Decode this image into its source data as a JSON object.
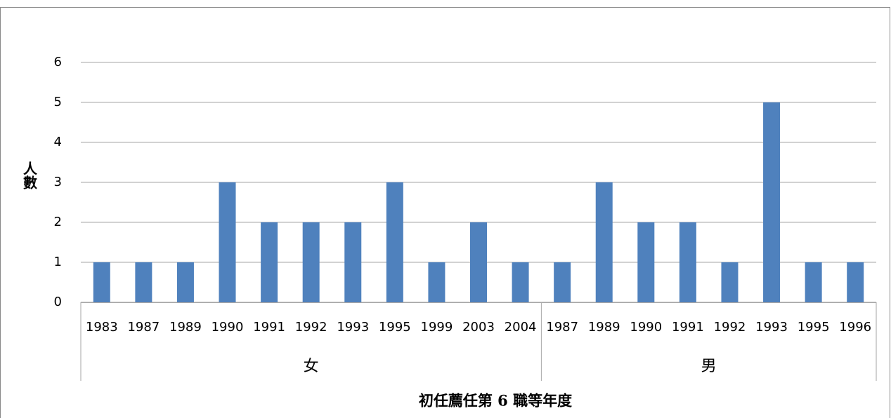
{
  "chart_data": {
    "type": "bar",
    "y_label": "人數",
    "x_label": "初任薦任第 6 職等年度",
    "color": "#4f81bd",
    "ylim": [
      0,
      6
    ],
    "yticks": [
      0,
      1,
      2,
      3,
      4,
      5,
      6
    ],
    "grid": true,
    "groups": [
      {
        "label": "女",
        "categories": [
          "1983",
          "1987",
          "1989",
          "1990",
          "1991",
          "1992",
          "1993",
          "1995",
          "1999",
          "2003",
          "2004"
        ],
        "values": [
          1,
          1,
          1,
          3,
          2,
          2,
          2,
          3,
          1,
          2,
          1
        ]
      },
      {
        "label": "男",
        "categories": [
          "1987",
          "1989",
          "1990",
          "1991",
          "1992",
          "1993",
          "1995",
          "1996"
        ],
        "values": [
          1,
          3,
          2,
          2,
          1,
          5,
          1,
          1
        ]
      }
    ]
  }
}
